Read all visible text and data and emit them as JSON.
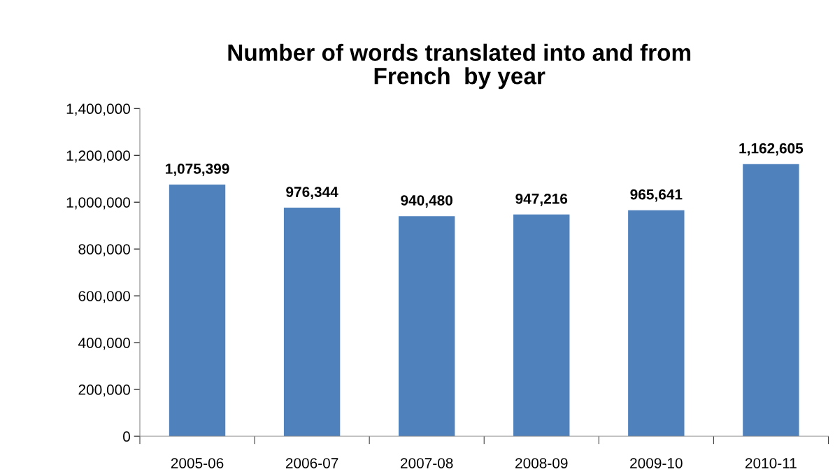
{
  "chart_data": {
    "type": "bar",
    "title": "Number of words translated into and from\nFrench  by year",
    "categories": [
      "2005-06",
      "2006-07",
      "2007-08",
      "2008-09",
      "2009-10",
      "2010-11"
    ],
    "values": [
      1075399,
      976344,
      940480,
      947216,
      965641,
      1162605
    ],
    "value_labels": [
      "1,075,399",
      "976,344",
      "940,480",
      "947,216",
      "965,641",
      "1,162,605"
    ],
    "color": "#4f81bd",
    "ylim": [
      0,
      1400000
    ],
    "yticks": [
      {
        "value": 0,
        "label": "0"
      },
      {
        "value": 200000,
        "label": "200,000"
      },
      {
        "value": 400000,
        "label": "400,000"
      },
      {
        "value": 600000,
        "label": "600,000"
      },
      {
        "value": 800000,
        "label": "800,000"
      },
      {
        "value": 1000000,
        "label": "1,000,000"
      },
      {
        "value": 1200000,
        "label": "1,200,000"
      },
      {
        "value": 1400000,
        "label": "1,400,000"
      }
    ],
    "grid": false,
    "legend": false
  }
}
